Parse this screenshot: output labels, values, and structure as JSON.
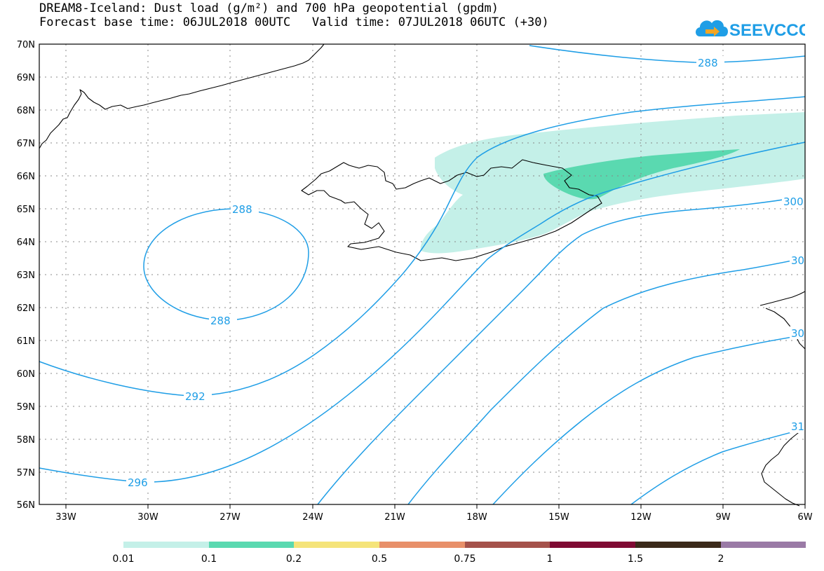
{
  "title": {
    "line1": "DREAM8-Iceland: Dust load (g/m²) and 700 hPa geopotential (gpdm)",
    "line2": "Forecast base time: 06JUL2018 00UTC   Valid time: 07JUL2018 06UTC (+30)"
  },
  "logo": {
    "text": "SEEVCCC",
    "icon": "cloud-icon",
    "color": "#1f9ee6"
  },
  "map": {
    "lat_range": [
      56,
      70
    ],
    "lon_range": [
      -34.2,
      -6
    ],
    "lat_labels": [
      "70N",
      "69N",
      "68N",
      "67N",
      "66N",
      "65N",
      "64N",
      "63N",
      "62N",
      "61N",
      "60N",
      "59N",
      "58N",
      "57N",
      "56N"
    ],
    "lon_labels": [
      "33W",
      "30W",
      "27W",
      "24W",
      "21W",
      "18W",
      "15W",
      "12W",
      "9W",
      "6W"
    ],
    "grid": "dotted",
    "contour_color": "#1f9ee6",
    "contour_labels": [
      "288",
      "288",
      "288",
      "292",
      "296",
      "300",
      "30",
      "30",
      "31"
    ]
  },
  "colorbar": {
    "labels": [
      "0.01",
      "0.1",
      "0.2",
      "0.5",
      "0.75",
      "1",
      "1.5",
      "2"
    ],
    "colors": [
      "#c4f0e8",
      "#5ad9b0",
      "#f5e47a",
      "#e8906a",
      "#a5524b",
      "#7f0a33",
      "#3b2a1a",
      "#9a7aa6"
    ]
  }
}
